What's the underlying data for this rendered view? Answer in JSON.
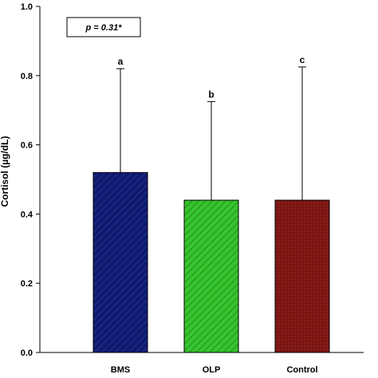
{
  "chart_data": {
    "type": "bar",
    "categories": [
      "BMS",
      "OLP",
      "Control"
    ],
    "values": [
      0.52,
      0.44,
      0.44
    ],
    "error_upper": [
      0.82,
      0.725,
      0.825
    ],
    "significance_labels": [
      "a",
      "b",
      "c"
    ],
    "bar_colors": [
      "#0f1a6e",
      "#35c42e",
      "#7a1512"
    ],
    "ylabel": "Cortisol (µg/dL)",
    "ylim": [
      0,
      1.0
    ],
    "yticks": [
      "0.0",
      "0.2",
      "0.4",
      "0.6",
      "0.8",
      "1.0"
    ],
    "annotation": "p = 0.31*",
    "grid": false
  }
}
